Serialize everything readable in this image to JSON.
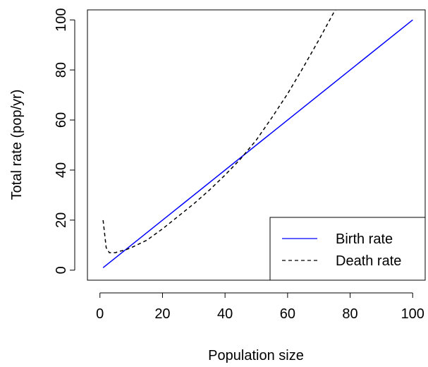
{
  "chart_data": {
    "type": "line",
    "title": "",
    "xlabel": "Population size",
    "ylabel": "Total rate (pop/yr)",
    "xlim": [
      -4,
      104
    ],
    "ylim": [
      -4,
      104
    ],
    "x_ticks": [
      0,
      20,
      40,
      60,
      80,
      100
    ],
    "y_ticks": [
      0,
      20,
      40,
      60,
      80,
      100
    ],
    "x_tick_labels": [
      "0",
      "20",
      "40",
      "60",
      "80",
      "100"
    ],
    "y_tick_labels": [
      "0",
      "20",
      "40",
      "60",
      "80",
      "100"
    ],
    "grid": false,
    "legend_position": "bottom-right",
    "series": [
      {
        "name": "Birth rate",
        "style": "solid",
        "color": "#0000ff",
        "x": [
          1,
          100
        ],
        "y": [
          1,
          100
        ]
      },
      {
        "name": "Death rate",
        "style": "dashed",
        "color": "#000000",
        "x": [
          1,
          2,
          3,
          4,
          5,
          6,
          8,
          10,
          15,
          20,
          25,
          30,
          35,
          40,
          45,
          50,
          55,
          60,
          65,
          70,
          75,
          76
        ],
        "y": [
          20,
          9,
          7,
          7,
          7,
          7.5,
          8,
          9,
          12,
          16.5,
          21.5,
          26.5,
          32,
          38,
          44.5,
          52,
          61,
          70.5,
          81,
          92,
          103.5,
          105
        ]
      }
    ],
    "legend_entries": [
      "Birth rate",
      "Death rate"
    ]
  }
}
